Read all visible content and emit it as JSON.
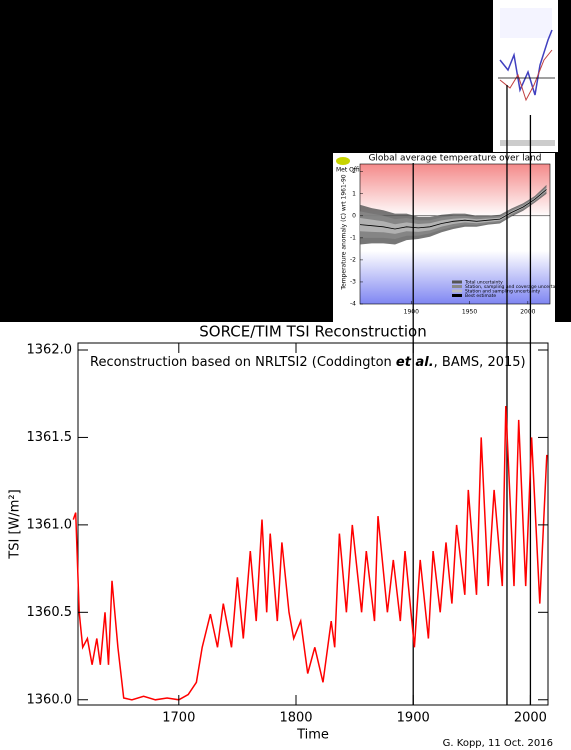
{
  "chart_data": [
    {
      "type": "line",
      "title": "SORCE/TIM TSI Reconstruction",
      "subtitle_parts": [
        "Reconstruction based on NRLTSI2 (Coddington ",
        "et al.",
        ", BAMS, 2015)"
      ],
      "xlabel": "Time",
      "ylabel": "TSI [W/m²]",
      "credit": "G. Kopp, 11 Oct. 2016",
      "color": "#ff0000",
      "x": [
        1610,
        1612,
        1615,
        1618,
        1622,
        1626,
        1630,
        1633,
        1637,
        1640,
        1643,
        1648,
        1653,
        1660,
        1670,
        1680,
        1690,
        1700,
        1708,
        1715,
        1720,
        1727,
        1733,
        1738,
        1745,
        1750,
        1755,
        1761,
        1766,
        1771,
        1775,
        1778,
        1784,
        1788,
        1794,
        1798,
        1804,
        1810,
        1816,
        1823,
        1830,
        1833,
        1837,
        1843,
        1848,
        1856,
        1860,
        1867,
        1870,
        1878,
        1883,
        1889,
        1893,
        1901,
        1906,
        1913,
        1917,
        1923,
        1928,
        1933,
        1937,
        1944,
        1947,
        1954,
        1958,
        1964,
        1969,
        1976,
        1979,
        1986,
        1990,
        1996,
        2001,
        2008,
        2014
      ],
      "values": [
        1361.03,
        1361.07,
        1360.5,
        1360.3,
        1360.35,
        1360.2,
        1360.35,
        1360.2,
        1360.5,
        1360.2,
        1360.68,
        1360.3,
        1360.01,
        1360.0,
        1360.02,
        1360.0,
        1360.01,
        1360.0,
        1360.03,
        1360.1,
        1360.3,
        1360.49,
        1360.3,
        1360.55,
        1360.3,
        1360.7,
        1360.35,
        1360.85,
        1360.45,
        1361.03,
        1360.5,
        1360.95,
        1360.45,
        1360.9,
        1360.5,
        1360.35,
        1360.45,
        1360.15,
        1360.3,
        1360.1,
        1360.45,
        1360.3,
        1360.95,
        1360.5,
        1361.0,
        1360.5,
        1360.85,
        1360.45,
        1361.05,
        1360.5,
        1360.8,
        1360.45,
        1360.85,
        1360.3,
        1360.8,
        1360.35,
        1360.85,
        1360.5,
        1360.9,
        1360.55,
        1361.0,
        1360.6,
        1361.2,
        1360.6,
        1361.5,
        1360.65,
        1361.2,
        1360.65,
        1361.68,
        1360.65,
        1361.6,
        1360.65,
        1361.5,
        1360.55,
        1361.4
      ],
      "xlim": [
        1614,
        2015
      ],
      "xticks": [
        1700,
        1800,
        1900,
        2000
      ],
      "ylim": [
        1359.97,
        1362.04
      ],
      "yticks": [
        {
          "value": 1360,
          "label": "1360.0"
        },
        1360.5,
        {
          "value": 1361,
          "label": "1361.0"
        },
        1361.5,
        {
          "value": 1362,
          "label": "1362.0"
        }
      ],
      "vlines": [
        1900,
        1980,
        2000
      ]
    },
    {
      "type": "band-line",
      "title": "Global average temperature over land",
      "ylabel": "Temperature anomaly (C) wrt 1961-90",
      "logo": "Met Office",
      "x": [
        1856,
        1866,
        1876,
        1886,
        1896,
        1906,
        1916,
        1926,
        1936,
        1946,
        1956,
        1966,
        1976,
        1986,
        1996,
        2006,
        2016
      ],
      "series": [
        {
          "name": "Total uncertainty",
          "color": "#555555",
          "values": [
            0.9,
            0.8,
            0.75,
            0.7,
            0.6,
            0.5,
            0.45,
            0.4,
            0.35,
            0.3,
            0.25,
            0.2,
            0.2,
            0.18,
            0.17,
            0.15,
            0.2
          ]
        },
        {
          "name": "Station, sampling and coverage uncertainty",
          "color": "#888888",
          "values": [
            0.6,
            0.55,
            0.5,
            0.45,
            0.4,
            0.35,
            0.3,
            0.28,
            0.25,
            0.2,
            0.18,
            0.15,
            0.14,
            0.13,
            0.12,
            0.11,
            0.14
          ]
        },
        {
          "name": "Station and sampling uncertainty",
          "color": "#bbbbbb",
          "values": [
            0.3,
            0.28,
            0.25,
            0.22,
            0.2,
            0.18,
            0.16,
            0.14,
            0.12,
            0.1,
            0.09,
            0.08,
            0.07,
            0.07,
            0.06,
            0.06,
            0.08
          ]
        },
        {
          "name": "Best estimate",
          "color": "#000000",
          "values": [
            -0.4,
            -0.45,
            -0.5,
            -0.6,
            -0.5,
            -0.55,
            -0.5,
            -0.35,
            -0.25,
            -0.2,
            -0.25,
            -0.2,
            -0.15,
            0.15,
            0.4,
            0.75,
            1.2
          ]
        }
      ],
      "xlim": [
        1856,
        2019
      ],
      "xticks": [
        1900,
        1950,
        2000
      ],
      "ylim": [
        -4,
        2.35
      ],
      "yticks": [
        2,
        1,
        0,
        -1,
        -2,
        -3,
        -4
      ]
    }
  ]
}
